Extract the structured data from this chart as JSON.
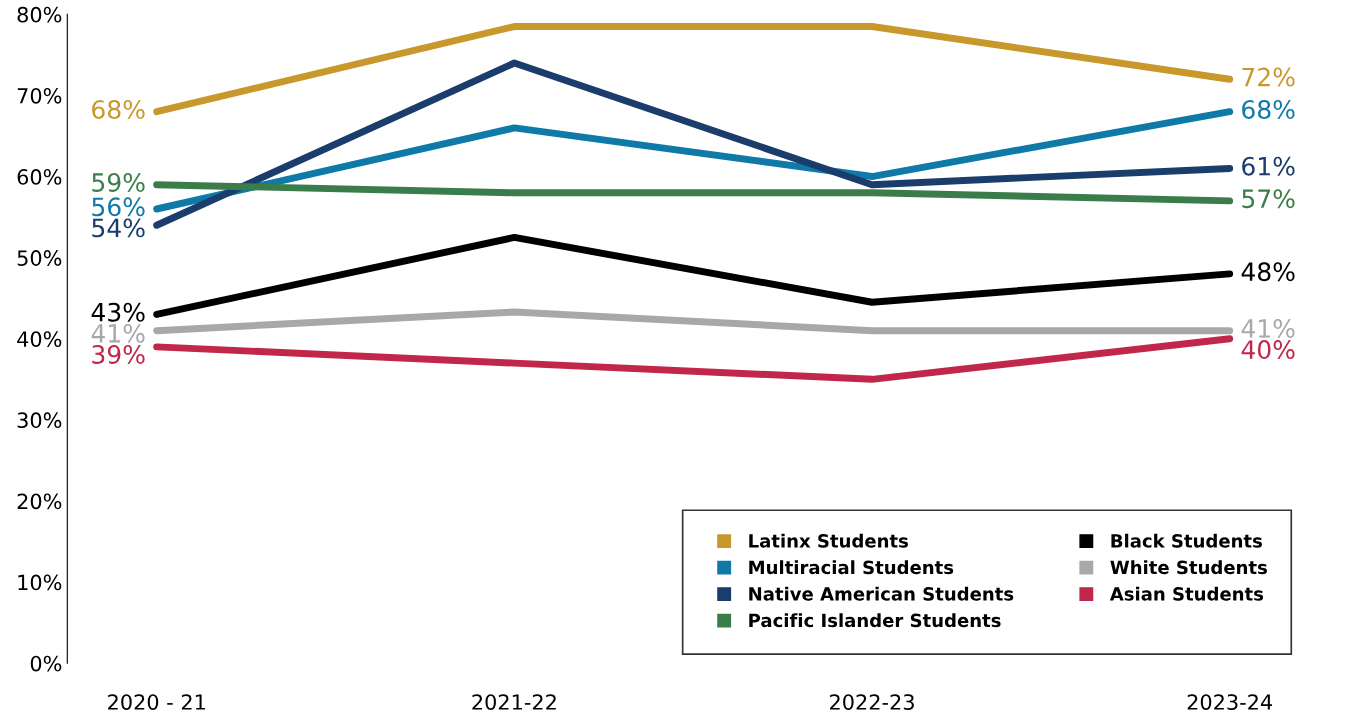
{
  "chart_data": {
    "type": "line",
    "categories": [
      "2020 - 21",
      "2021-22",
      "2022-23",
      "2023-24"
    ],
    "ylim": [
      0,
      80
    ],
    "yticks": [
      {
        "value": 0,
        "label": "0%"
      },
      {
        "value": 10,
        "label": "10%"
      },
      {
        "value": 20,
        "label": "20%"
      },
      {
        "value": 30,
        "label": "30%"
      },
      {
        "value": 40,
        "label": "40%"
      },
      {
        "value": 50,
        "label": "50%"
      },
      {
        "value": 60,
        "label": "60%"
      },
      {
        "value": 70,
        "label": "70%"
      },
      {
        "value": 80,
        "label": "80%"
      }
    ],
    "grid": false,
    "legend": "bottom right",
    "marker": "none",
    "line_style": "solid",
    "series": [
      {
        "name": "Latinx Students",
        "color": "#c9982c",
        "values": [
          68,
          78.5,
          78.5,
          72
        ],
        "value_labels": [
          "68%",
          null,
          null,
          "72%"
        ]
      },
      {
        "name": "Multiracial Students",
        "color": "#0f7aa8",
        "values": [
          56,
          66,
          60,
          68
        ],
        "value_labels": [
          "56%",
          null,
          null,
          "68%"
        ]
      },
      {
        "name": "Native American Students",
        "color": "#1b3d6b",
        "values": [
          54,
          74,
          59,
          61
        ],
        "value_labels": [
          "54%",
          null,
          null,
          "61%"
        ]
      },
      {
        "name": "Pacific Islander Students",
        "color": "#3a7d4a",
        "values": [
          59,
          58,
          58,
          57
        ],
        "value_labels": [
          "59%",
          null,
          null,
          "57%"
        ]
      },
      {
        "name": "Black Students",
        "color": "#000000",
        "values": [
          43,
          52.5,
          44.5,
          48
        ],
        "value_labels": [
          "43%",
          null,
          null,
          "48%"
        ]
      },
      {
        "name": "White Students",
        "color": "#a8a8ab",
        "values": [
          41,
          43.3,
          41,
          41
        ],
        "value_labels": [
          "41%",
          null,
          null,
          "41%"
        ]
      },
      {
        "name": "Asian Students",
        "color": "#c0274a",
        "values": [
          39,
          37,
          35,
          40
        ],
        "value_labels": [
          "39%",
          null,
          null,
          "40%"
        ]
      }
    ]
  }
}
